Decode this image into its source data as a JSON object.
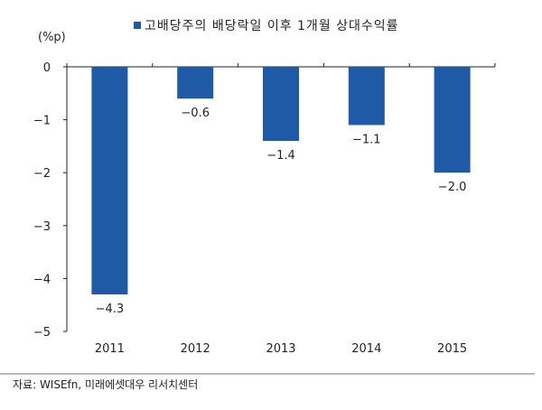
{
  "chart_data": {
    "type": "bar",
    "title": "",
    "legend": [
      "고배당주의 배당락일 이후 1개월 상대수익률"
    ],
    "legend_position": "top",
    "ylabel": "(%p)",
    "xlabel": "",
    "categories": [
      "2011",
      "2012",
      "2013",
      "2014",
      "2015"
    ],
    "series": [
      {
        "name": "고배당주의 배당락일 이후 1개월 상대수익률",
        "values": [
          -4.3,
          -0.6,
          -1.4,
          -1.1,
          -2.0
        ]
      }
    ],
    "data_labels": [
      "−4.3",
      "−0.6",
      "−1.4",
      "−1.1",
      "−2.0"
    ],
    "yticks": [
      0,
      -1,
      -2,
      -3,
      -4,
      -5
    ],
    "ytick_labels": [
      "0",
      "−1",
      "−2",
      "−3",
      "−4",
      "−5"
    ],
    "ylim": [
      -5,
      0
    ],
    "grid": false,
    "colors": {
      "bar": "#1f5aa6"
    }
  },
  "source": "자료: WISEfn, 미래에셋대우 리서치센터"
}
